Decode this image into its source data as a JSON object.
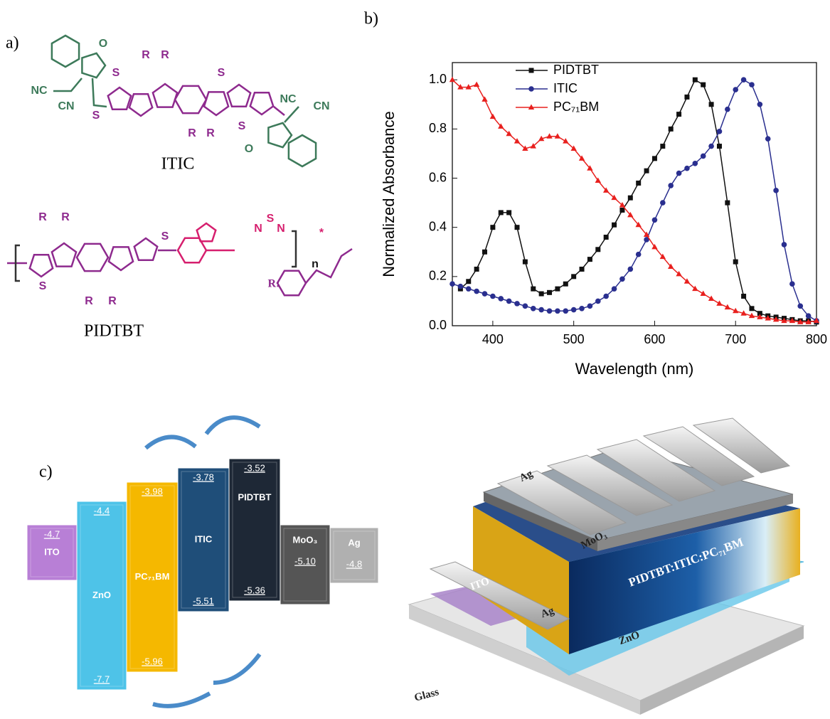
{
  "panel_a": {
    "label": "a)",
    "itic": {
      "name": "ITIC",
      "atoms": [
        "O",
        "NC",
        "CN",
        "S",
        "R",
        "R",
        "S",
        "S",
        "R",
        "R",
        "S",
        "NC",
        "CN",
        "O"
      ]
    },
    "pidtbt": {
      "name": "PIDTBT",
      "atoms": [
        "R",
        "R",
        "S",
        "S",
        "N",
        "S",
        "N",
        "R",
        "R",
        "*",
        "n"
      ],
      "substituent": "R:"
    }
  },
  "chart_data": {
    "type": "line",
    "label": "b)",
    "x_label": "Wavelength (nm)",
    "y_label": "Normalized Absorbance",
    "x": [
      350,
      360,
      370,
      380,
      390,
      400,
      410,
      420,
      430,
      440,
      450,
      460,
      470,
      480,
      490,
      500,
      510,
      520,
      530,
      540,
      550,
      560,
      570,
      580,
      590,
      600,
      610,
      620,
      630,
      640,
      650,
      660,
      670,
      680,
      690,
      700,
      710,
      720,
      730,
      740,
      750,
      760,
      770,
      780,
      790,
      800
    ],
    "series": [
      {
        "name": "PIDTBT",
        "color": "#111111",
        "marker": "square",
        "values": [
          null,
          0.15,
          0.18,
          0.23,
          0.3,
          0.4,
          0.46,
          0.46,
          0.4,
          0.26,
          0.15,
          0.13,
          0.135,
          0.15,
          0.17,
          0.2,
          0.23,
          0.27,
          0.31,
          0.36,
          0.41,
          0.47,
          0.52,
          0.58,
          0.63,
          0.68,
          0.73,
          0.8,
          0.86,
          0.93,
          1.0,
          0.98,
          0.9,
          0.73,
          0.5,
          0.26,
          0.12,
          0.07,
          0.05,
          0.04,
          0.035,
          0.03,
          0.025,
          0.02,
          0.02,
          0.015
        ]
      },
      {
        "name": "ITIC",
        "color": "#2a2f8f",
        "marker": "circle",
        "values": [
          0.17,
          0.16,
          0.15,
          0.14,
          0.13,
          0.12,
          0.11,
          0.1,
          0.09,
          0.08,
          0.07,
          0.065,
          0.06,
          0.06,
          0.06,
          0.065,
          0.07,
          0.08,
          0.1,
          0.12,
          0.15,
          0.19,
          0.23,
          0.29,
          0.35,
          0.43,
          0.5,
          0.57,
          0.62,
          0.64,
          0.66,
          0.69,
          0.73,
          0.79,
          0.88,
          0.96,
          1.0,
          0.98,
          0.9,
          0.76,
          0.55,
          0.33,
          0.17,
          0.08,
          0.04,
          0.02
        ]
      },
      {
        "name": "PC₇₁BM",
        "color": "#e8201e",
        "marker": "triangle",
        "values": [
          1.0,
          0.97,
          0.97,
          0.98,
          0.92,
          0.85,
          0.81,
          0.78,
          0.75,
          0.72,
          0.73,
          0.76,
          0.77,
          0.77,
          0.75,
          0.72,
          0.68,
          0.64,
          0.59,
          0.55,
          0.52,
          0.49,
          0.45,
          0.41,
          0.37,
          0.32,
          0.28,
          0.24,
          0.21,
          0.18,
          0.15,
          0.13,
          0.11,
          0.09,
          0.075,
          0.06,
          0.05,
          0.04,
          0.035,
          0.03,
          0.025,
          0.02,
          0.02,
          0.015,
          0.015,
          0.02
        ]
      }
    ],
    "xlim": [
      350,
      800
    ],
    "ylim": [
      0,
      1.07
    ],
    "xticks": [
      400,
      500,
      600,
      700,
      800
    ],
    "yticks": [
      {
        "value": 0,
        "label": "0.0"
      },
      0.2,
      0.4,
      0.6,
      0.8,
      {
        "value": 1,
        "label": "1.0"
      }
    ],
    "legend": "upper-left"
  },
  "panel_c": {
    "label": "c)",
    "levels": [
      {
        "name": "ITO",
        "upper": "-4.7"
      },
      {
        "name": "ZnO",
        "upper": "-4.4",
        "lower": "-7.7"
      },
      {
        "name": "PC₇₁BM",
        "upper": "-3.98",
        "lower": "-5.96"
      },
      {
        "name": "ITIC",
        "upper": "-3.78",
        "lower": "-5.51"
      },
      {
        "name": "PIDTBT",
        "upper": "-3.52",
        "lower": "-5.36"
      },
      {
        "name": "MoO₃",
        "lower": "-5.10"
      },
      {
        "name": "Ag",
        "lower": "-4.8"
      }
    ],
    "device": [
      "Ag",
      "MoO₃",
      "PIDTBT:ITIC:PC₇₁BM",
      "ZnO",
      "ITO",
      "Ag",
      "Glass"
    ]
  }
}
